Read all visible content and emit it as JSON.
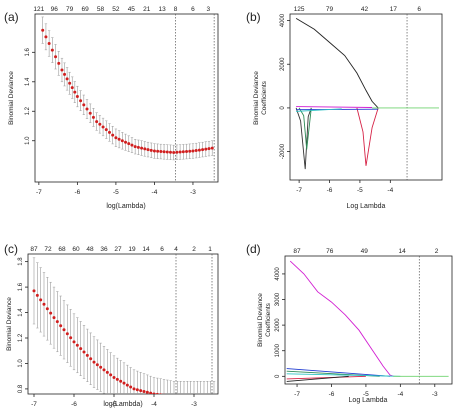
{
  "colors": {
    "dev_points": "#d11f1f",
    "error_bars": "#9a9a9a",
    "axes": "#222222",
    "vline": "#555555"
  },
  "chart_data": [
    {
      "panel_label": "(a)",
      "type": "line",
      "xlabel": "log(Lambda)",
      "ylabel": "Binomial Deviance",
      "xlim": [
        -7.1,
        -2.35
      ],
      "ylim": [
        0.72,
        1.86
      ],
      "x_ticks": [
        -7,
        -6,
        -5,
        -4,
        -3
      ],
      "y_ticks": [
        1.0,
        1.2,
        1.4,
        1.6
      ],
      "y_tick_labels": [
        "1.0",
        "1.2",
        "1.4",
        "1.6"
      ],
      "top_axis_labels": [
        "121",
        "96",
        "79",
        "69",
        "58",
        "52",
        "45",
        "21",
        "13",
        "8",
        "6",
        "3"
      ],
      "top_axis_x": [
        -7.0,
        -6.6,
        -6.2,
        -5.8,
        -5.4,
        -5.0,
        -4.6,
        -4.2,
        -3.8,
        -3.45,
        -3.0,
        -2.6
      ],
      "vlines": [
        -3.45,
        -2.45
      ],
      "series": [
        {
          "x": [
            -6.9,
            -6.4,
            -6.0,
            -5.5,
            -5.0,
            -4.5,
            -4.0,
            -3.5,
            -3.0,
            -2.5
          ],
          "y": [
            1.75,
            1.48,
            1.3,
            1.13,
            1.02,
            0.96,
            0.93,
            0.92,
            0.93,
            0.95
          ],
          "err": [
            0.09,
            0.08,
            0.07,
            0.06,
            0.06,
            0.05,
            0.05,
            0.05,
            0.05,
            0.05
          ]
        }
      ]
    },
    {
      "panel_label": "(b)",
      "type": "line",
      "xlabel": "Log Lambda",
      "ylabel": "Binomial Deviance\nCoefficients",
      "xlim": [
        -7.3,
        -2.3
      ],
      "ylim": [
        -3300,
        4300
      ],
      "x_ticks": [
        -7,
        -6,
        -5,
        -4
      ],
      "y_ticks": [
        -2000,
        0,
        2000,
        4000
      ],
      "y_tick_labels": [
        "-2000",
        "0",
        "2000",
        "4000"
      ],
      "top_axis_labels": [
        "125",
        "79",
        "42",
        "17",
        "6"
      ],
      "top_axis_x": [
        -7.0,
        -6.0,
        -4.85,
        -3.9,
        -3.05
      ],
      "vlines": [
        -3.45
      ],
      "series": [
        {
          "x": [
            -7.1,
            -6.5,
            -6.0,
            -5.5,
            -5.1,
            -4.8,
            -4.6,
            -4.4
          ],
          "y": [
            4100,
            3600,
            3000,
            2400,
            1600,
            800,
            300,
            0
          ],
          "color": "#222222"
        },
        {
          "x": [
            -7.1,
            -6.95,
            -6.8,
            -6.7,
            -6.6
          ],
          "y": [
            0,
            -600,
            -2800,
            -400,
            0
          ],
          "color": "#333333"
        },
        {
          "x": [
            -7.0,
            -6.85,
            -6.75,
            -6.6
          ],
          "y": [
            0,
            -350,
            -1900,
            0
          ],
          "color": "#2e8b57"
        },
        {
          "x": [
            -5.1,
            -4.9,
            -4.8,
            -4.6,
            -4.4
          ],
          "y": [
            0,
            -1100,
            -2650,
            -900,
            0
          ],
          "color": "#d62246"
        },
        {
          "x": [
            -7.1,
            -4.4
          ],
          "y": [
            -80,
            -60
          ],
          "color": "#1f3bd1"
        },
        {
          "x": [
            -7.1,
            -4.6
          ],
          "y": [
            60,
            20
          ],
          "color": "#d21fd2"
        },
        {
          "x": [
            -4.6,
            -2.4
          ],
          "y": [
            0,
            0
          ],
          "color": "#6fd36f"
        },
        {
          "x": [
            -7.1,
            -5.6
          ],
          "y": [
            -160,
            -40
          ],
          "color": "#2fc4c4"
        }
      ]
    },
    {
      "panel_label": "(c)",
      "type": "line",
      "xlabel": "log(Lambda)",
      "ylabel": "Binomial Deviance",
      "xlim": [
        -7.15,
        -2.4
      ],
      "ylim": [
        0.76,
        1.86
      ],
      "x_ticks": [
        -7,
        -6,
        -5,
        -4,
        -3
      ],
      "y_ticks": [
        0.8,
        1.0,
        1.2,
        1.4,
        1.6,
        1.8
      ],
      "y_tick_labels": [
        "0.8",
        "1.0",
        "1.2",
        "1.4",
        "1.6",
        "1.8"
      ],
      "top_axis_labels": [
        "87",
        "72",
        "68",
        "60",
        "48",
        "36",
        "27",
        "19",
        "14",
        "6",
        "4",
        "2",
        "1"
      ],
      "top_axis_x": [
        -7.0,
        -6.65,
        -6.3,
        -5.95,
        -5.6,
        -5.25,
        -4.9,
        -4.55,
        -4.2,
        -3.8,
        -3.45,
        -3.0,
        -2.6
      ],
      "vlines": [
        -3.45,
        -2.55
      ],
      "series": [
        {
          "x": [
            -7.0,
            -6.5,
            -6.0,
            -5.5,
            -5.0,
            -4.5,
            -4.0,
            -3.5,
            -3.0,
            -2.5
          ],
          "y": [
            1.57,
            1.36,
            1.17,
            1.01,
            0.89,
            0.8,
            0.76,
            0.74,
            0.74,
            0.74
          ],
          "err": [
            0.26,
            0.24,
            0.22,
            0.2,
            0.17,
            0.15,
            0.13,
            0.12,
            0.12,
            0.12
          ]
        }
      ]
    },
    {
      "panel_label": "(d)",
      "type": "line",
      "xlabel": "Log Lambda",
      "ylabel": "Binomial Deviance\nCoefficients",
      "xlim": [
        -7.35,
        -2.5
      ],
      "ylim": [
        -300,
        4700
      ],
      "x_ticks": [
        -7,
        -6,
        -5,
        -4,
        -3
      ],
      "y_ticks": [
        0,
        1000,
        2000,
        3000,
        4000
      ],
      "y_tick_labels": [
        "0",
        "1000",
        "2000",
        "3000",
        "4000"
      ],
      "top_axis_labels": [
        "87",
        "76",
        "49",
        "14",
        "2"
      ],
      "top_axis_x": [
        -7.0,
        -6.05,
        -5.05,
        -3.95,
        -2.95
      ],
      "vlines": [
        -3.45
      ],
      "series": [
        {
          "x": [
            -7.2,
            -6.8,
            -6.4,
            -6.0,
            -5.6,
            -5.2,
            -4.8,
            -4.5,
            -4.3,
            -4.2
          ],
          "y": [
            4500,
            4000,
            3300,
            2900,
            2400,
            1800,
            1000,
            400,
            50,
            0
          ],
          "color": "#d21fd2"
        },
        {
          "x": [
            -7.3,
            -4.3
          ],
          "y": [
            300,
            0
          ],
          "color": "#1f3bd1"
        },
        {
          "x": [
            -7.3,
            -4.6
          ],
          "y": [
            200,
            0
          ],
          "color": "#2e8b57"
        },
        {
          "x": [
            -7.3,
            -5.0
          ],
          "y": [
            -100,
            0
          ],
          "color": "#d62246"
        },
        {
          "x": [
            -7.3,
            -4.0
          ],
          "y": [
            100,
            0
          ],
          "color": "#2fc4c4"
        },
        {
          "x": [
            -7.3,
            -5.5
          ],
          "y": [
            -200,
            0
          ],
          "color": "#222222"
        },
        {
          "x": [
            -4.2,
            -2.6
          ],
          "y": [
            0,
            0
          ],
          "color": "#6fd36f"
        }
      ]
    }
  ]
}
